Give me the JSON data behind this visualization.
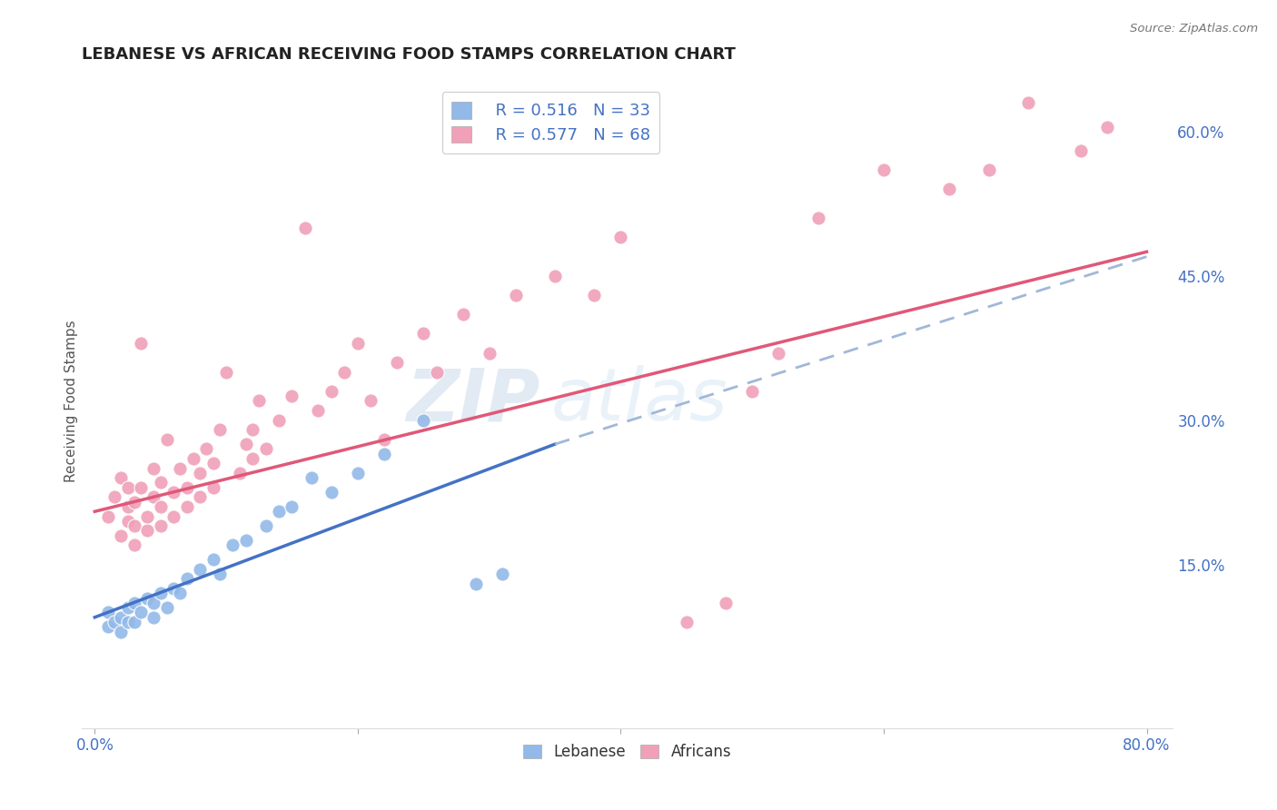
{
  "title": "LEBANESE VS AFRICAN RECEIVING FOOD STAMPS CORRELATION CHART",
  "source": "Source: ZipAtlas.com",
  "xlabel": "",
  "ylabel": "Receiving Food Stamps",
  "xlim": [
    -1.0,
    82.0
  ],
  "ylim": [
    -2.0,
    66.0
  ],
  "xticks": [
    0.0,
    20.0,
    40.0,
    60.0,
    80.0
  ],
  "xtick_labels": [
    "0.0%",
    "",
    "",
    "",
    "80.0%"
  ],
  "yticks": [
    0.0,
    15.0,
    30.0,
    45.0,
    60.0
  ],
  "ytick_labels": [
    "",
    "15.0%",
    "30.0%",
    "45.0%",
    "60.0%"
  ],
  "lebanese_R": 0.516,
  "lebanese_N": 33,
  "african_R": 0.577,
  "african_N": 68,
  "lebanese_color": "#92b9e8",
  "african_color": "#f0a0b8",
  "lebanese_line_color": "#4472c4",
  "african_line_color": "#e05878",
  "watermark_text": "ZIP",
  "watermark_text2": "atlas",
  "background_color": "#ffffff",
  "grid_color": "#c8c8c8",
  "legend_blue_text": "#4472c4",
  "axis_tick_color": "#4472c4",
  "lebanese_points": [
    [
      1.0,
      10.0
    ],
    [
      1.0,
      8.5
    ],
    [
      1.5,
      9.0
    ],
    [
      2.0,
      8.0
    ],
    [
      2.0,
      9.5
    ],
    [
      2.5,
      9.0
    ],
    [
      2.5,
      10.5
    ],
    [
      3.0,
      9.0
    ],
    [
      3.0,
      11.0
    ],
    [
      3.5,
      10.0
    ],
    [
      4.0,
      11.5
    ],
    [
      4.5,
      11.0
    ],
    [
      4.5,
      9.5
    ],
    [
      5.0,
      12.0
    ],
    [
      5.5,
      10.5
    ],
    [
      6.0,
      12.5
    ],
    [
      6.5,
      12.0
    ],
    [
      7.0,
      13.5
    ],
    [
      8.0,
      14.5
    ],
    [
      9.0,
      15.5
    ],
    [
      9.5,
      14.0
    ],
    [
      10.5,
      17.0
    ],
    [
      11.5,
      17.5
    ],
    [
      13.0,
      19.0
    ],
    [
      14.0,
      20.5
    ],
    [
      15.0,
      21.0
    ],
    [
      16.5,
      24.0
    ],
    [
      18.0,
      22.5
    ],
    [
      20.0,
      24.5
    ],
    [
      22.0,
      26.5
    ],
    [
      25.0,
      30.0
    ],
    [
      29.0,
      13.0
    ],
    [
      31.0,
      14.0
    ]
  ],
  "african_points": [
    [
      1.0,
      20.0
    ],
    [
      1.5,
      22.0
    ],
    [
      2.0,
      18.0
    ],
    [
      2.0,
      24.0
    ],
    [
      2.5,
      19.5
    ],
    [
      2.5,
      21.0
    ],
    [
      2.5,
      23.0
    ],
    [
      3.0,
      17.0
    ],
    [
      3.0,
      19.0
    ],
    [
      3.0,
      21.5
    ],
    [
      3.5,
      23.0
    ],
    [
      3.5,
      38.0
    ],
    [
      4.0,
      18.5
    ],
    [
      4.0,
      20.0
    ],
    [
      4.5,
      22.0
    ],
    [
      4.5,
      25.0
    ],
    [
      5.0,
      19.0
    ],
    [
      5.0,
      21.0
    ],
    [
      5.0,
      23.5
    ],
    [
      5.5,
      28.0
    ],
    [
      6.0,
      20.0
    ],
    [
      6.0,
      22.5
    ],
    [
      6.5,
      25.0
    ],
    [
      7.0,
      21.0
    ],
    [
      7.0,
      23.0
    ],
    [
      7.5,
      26.0
    ],
    [
      8.0,
      22.0
    ],
    [
      8.0,
      24.5
    ],
    [
      8.5,
      27.0
    ],
    [
      9.0,
      23.0
    ],
    [
      9.0,
      25.5
    ],
    [
      9.5,
      29.0
    ],
    [
      10.0,
      35.0
    ],
    [
      11.0,
      24.5
    ],
    [
      11.5,
      27.5
    ],
    [
      12.0,
      26.0
    ],
    [
      12.0,
      29.0
    ],
    [
      12.5,
      32.0
    ],
    [
      13.0,
      27.0
    ],
    [
      14.0,
      30.0
    ],
    [
      15.0,
      32.5
    ],
    [
      16.0,
      50.0
    ],
    [
      17.0,
      31.0
    ],
    [
      18.0,
      33.0
    ],
    [
      19.0,
      35.0
    ],
    [
      20.0,
      38.0
    ],
    [
      21.0,
      32.0
    ],
    [
      22.0,
      28.0
    ],
    [
      23.0,
      36.0
    ],
    [
      25.0,
      39.0
    ],
    [
      26.0,
      35.0
    ],
    [
      28.0,
      41.0
    ],
    [
      30.0,
      37.0
    ],
    [
      32.0,
      43.0
    ],
    [
      35.0,
      45.0
    ],
    [
      38.0,
      43.0
    ],
    [
      40.0,
      49.0
    ],
    [
      45.0,
      9.0
    ],
    [
      48.0,
      11.0
    ],
    [
      50.0,
      33.0
    ],
    [
      52.0,
      37.0
    ],
    [
      55.0,
      51.0
    ],
    [
      60.0,
      56.0
    ],
    [
      65.0,
      54.0
    ],
    [
      68.0,
      56.0
    ],
    [
      71.0,
      63.0
    ],
    [
      75.0,
      58.0
    ],
    [
      77.0,
      60.5
    ]
  ],
  "lebanese_line": [
    [
      0.0,
      9.5
    ],
    [
      35.0,
      27.5
    ]
  ],
  "lebanese_dashed_line": [
    [
      35.0,
      27.5
    ],
    [
      80.0,
      47.0
    ]
  ],
  "african_line": [
    [
      0.0,
      20.5
    ],
    [
      80.0,
      47.5
    ]
  ]
}
